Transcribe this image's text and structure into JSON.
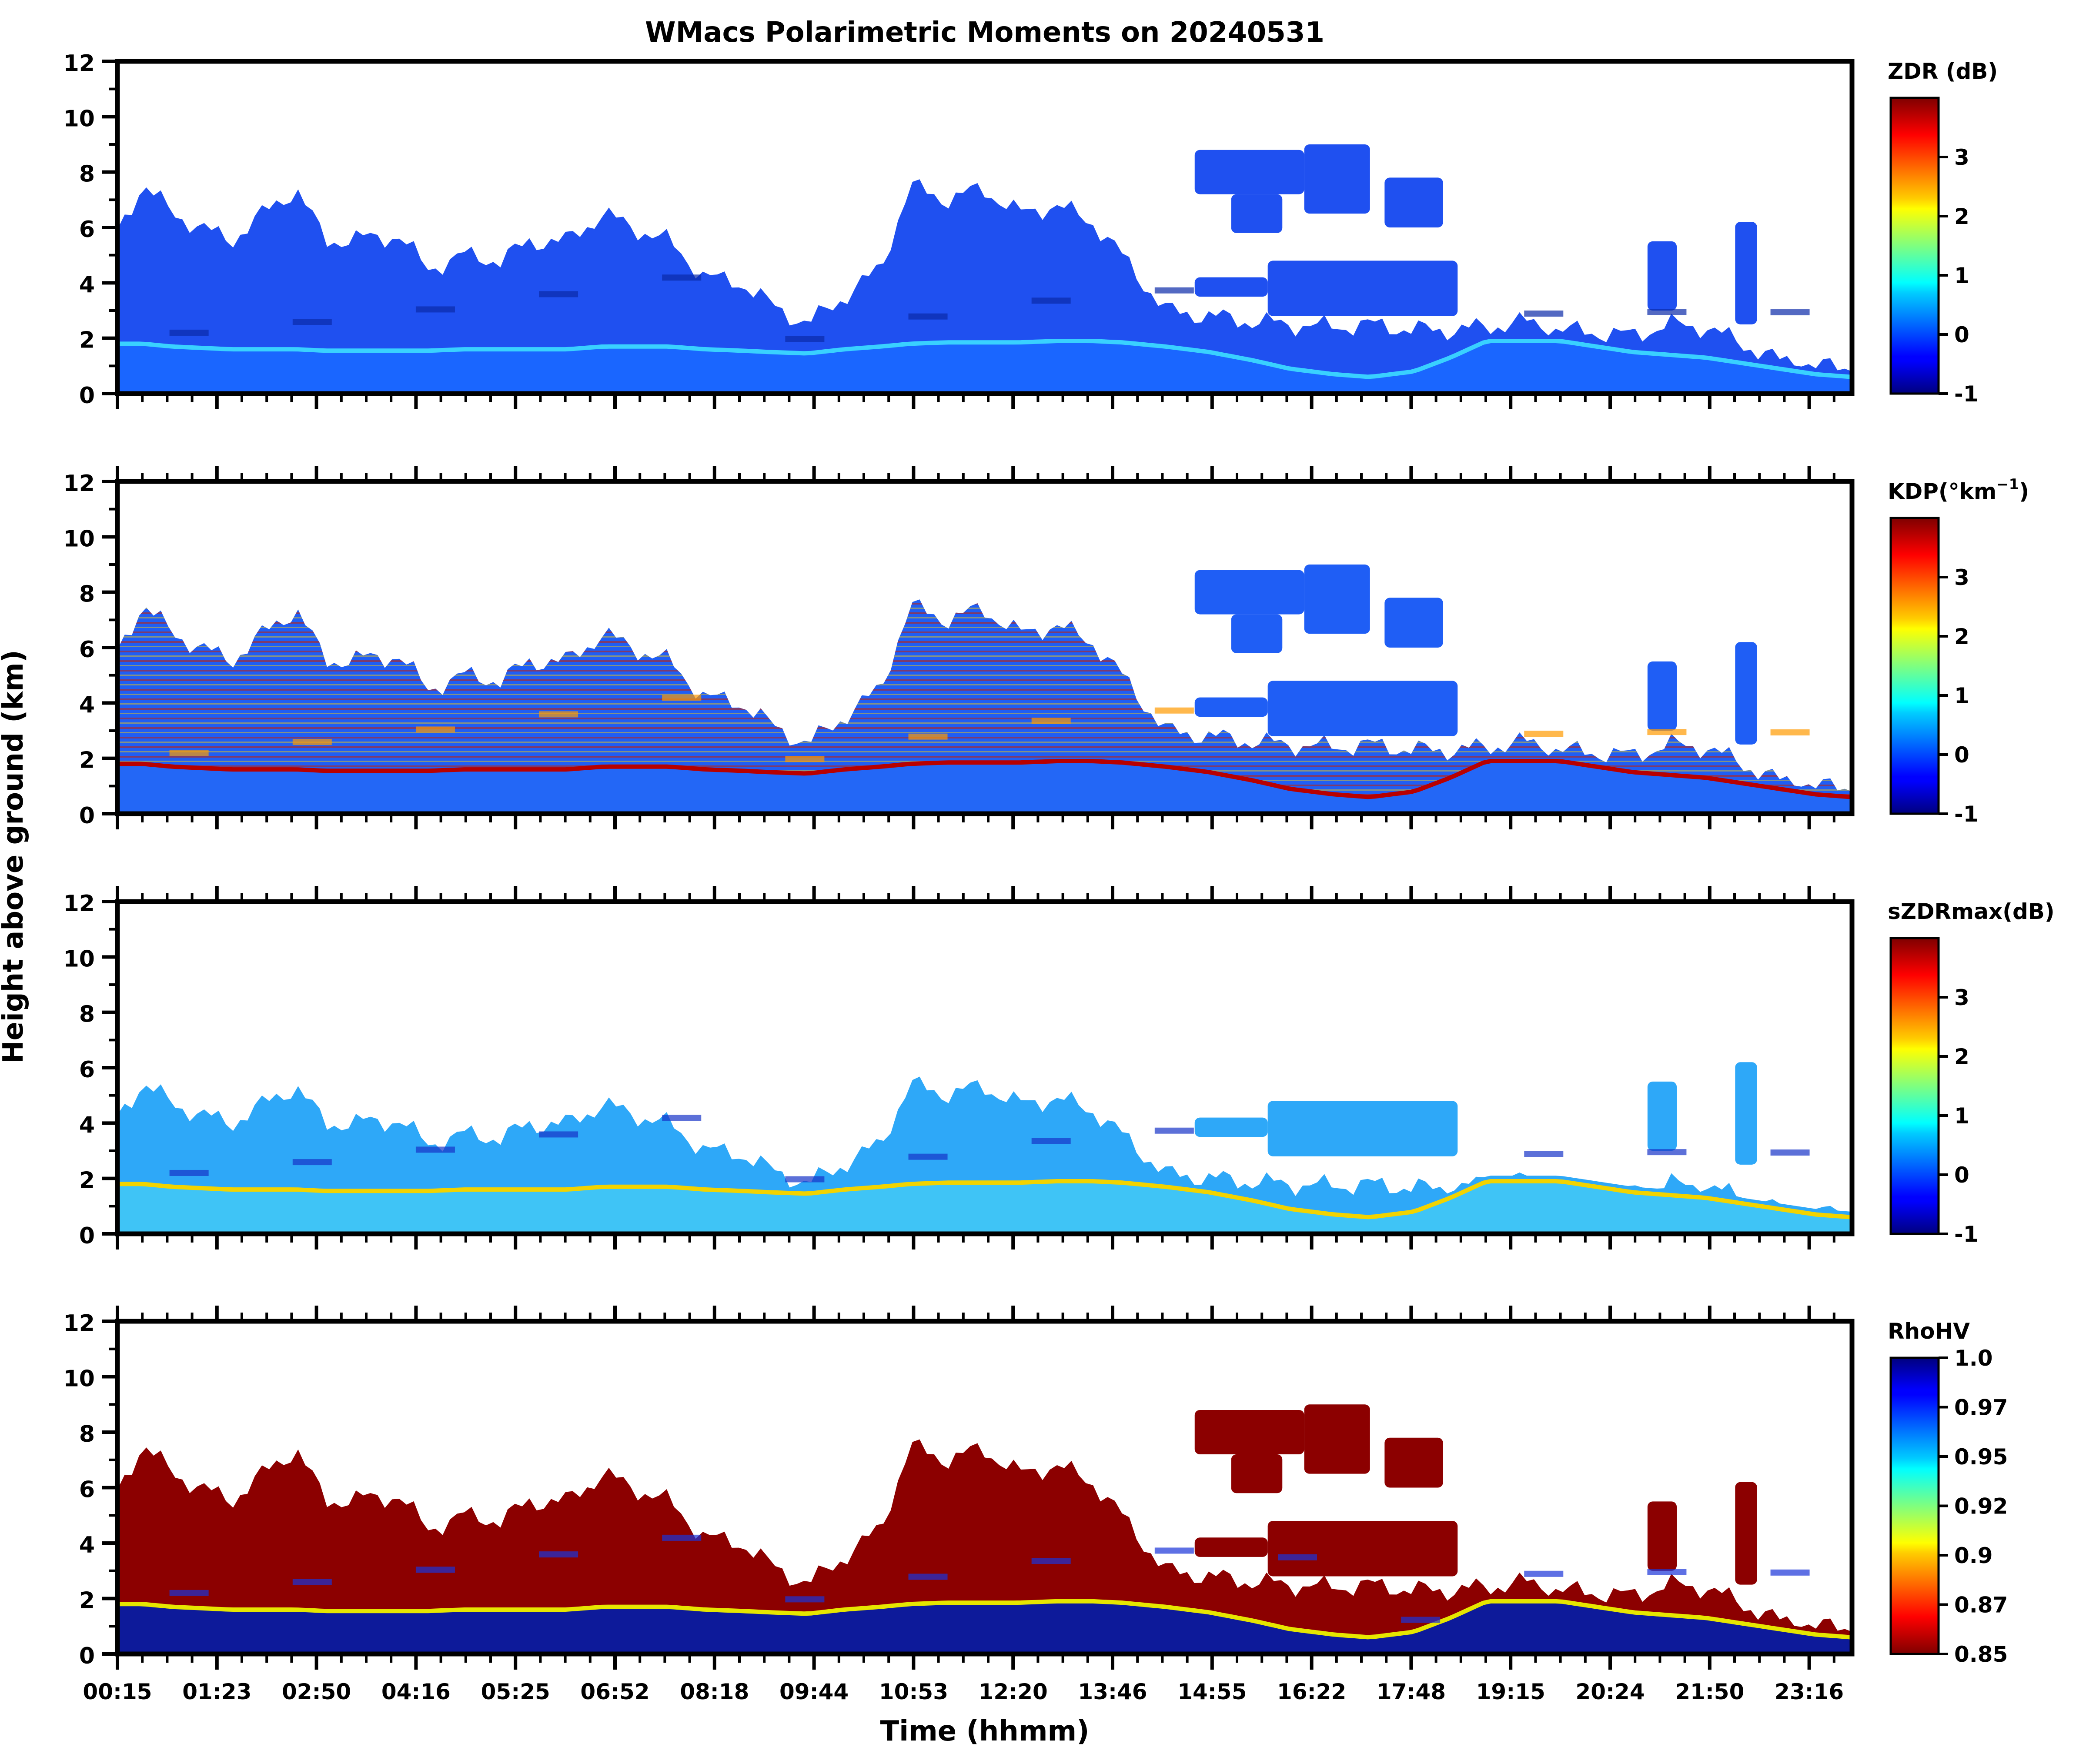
{
  "figure": {
    "title": "WMacs Polarimetric Moments on 20240531",
    "ylabel": "Height above ground (km)",
    "xlabel": "Time (hhmm)"
  },
  "chart_data": [
    {
      "type": "heatmap",
      "variable": "ZDR",
      "colorbar_label": "ZDR (dB)",
      "colorbar_ticks": [
        "3",
        "2",
        "1",
        "0",
        "-1"
      ],
      "colorbar_tick_values": [
        3,
        2,
        1,
        0,
        -1
      ],
      "clim": [
        -1,
        4
      ],
      "colormap": "jet",
      "ylim": [
        0,
        12
      ],
      "yticks": [
        "0",
        "2",
        "4",
        "6",
        "8",
        "10",
        "12"
      ],
      "xlim_hours": [
        0.25,
        24.0
      ],
      "xticks_shown": false
    },
    {
      "type": "heatmap",
      "variable": "KDP",
      "colorbar_label_main": "KDP(°km",
      "colorbar_label_sup": "−1",
      "colorbar_label_end": ")",
      "colorbar_ticks": [
        "3",
        "2",
        "1",
        "0",
        "-1"
      ],
      "colorbar_tick_values": [
        3,
        2,
        1,
        0,
        -1
      ],
      "clim": [
        -1,
        4
      ],
      "colormap": "jet",
      "ylim": [
        0,
        12
      ],
      "yticks": [
        "0",
        "2",
        "4",
        "6",
        "8",
        "10",
        "12"
      ],
      "xlim_hours": [
        0.25,
        24.0
      ],
      "xticks_shown": false
    },
    {
      "type": "heatmap",
      "variable": "sZDRmax",
      "colorbar_label": "sZDRmax(dB)",
      "colorbar_ticks": [
        "3",
        "2",
        "1",
        "0",
        "-1"
      ],
      "colorbar_tick_values": [
        3,
        2,
        1,
        0,
        -1
      ],
      "clim": [
        -1,
        4
      ],
      "colormap": "jet",
      "ylim": [
        0,
        12
      ],
      "yticks": [
        "0",
        "2",
        "4",
        "6",
        "8",
        "10",
        "12"
      ],
      "xlim_hours": [
        0.25,
        24.0
      ],
      "xticks_shown": false
    },
    {
      "type": "heatmap",
      "variable": "RhoHV",
      "colorbar_label": "RhoHV",
      "colorbar_ticks": [
        "1.0",
        "0.97",
        "0.95",
        "0.92",
        "0.9",
        "0.87",
        "0.85"
      ],
      "colorbar_tick_values": [
        1.0,
        0.975,
        0.95,
        0.925,
        0.9,
        0.875,
        0.85
      ],
      "clim": [
        0.85,
        1.0
      ],
      "colormap": "jet_r",
      "ylim": [
        0,
        12
      ],
      "yticks": [
        "0",
        "2",
        "4",
        "6",
        "8",
        "10",
        "12"
      ],
      "xlim_hours": [
        0.25,
        24.0
      ],
      "xticks_shown": true,
      "xtick_labels": [
        "00:15",
        "01:23",
        "02:50",
        "04:16",
        "05:25",
        "06:52",
        "08:18",
        "09:44",
        "10:53",
        "12:20",
        "13:46",
        "14:55",
        "16:22",
        "17:48",
        "19:15",
        "20:24",
        "21:50",
        "23:16"
      ]
    }
  ],
  "echo_profile_km": {
    "times_hours": [
      0.25,
      0.6,
      1.0,
      1.4,
      1.8,
      2.2,
      2.7,
      3.1,
      3.6,
      4.1,
      4.5,
      5.0,
      5.5,
      5.9,
      6.4,
      6.9,
      7.3,
      7.8,
      8.3,
      8.8,
      9.2,
      9.7,
      10.2,
      10.7,
      11.1,
      11.6,
      12.1,
      12.6,
      13.1,
      13.6,
      14.0,
      14.6,
      15.2,
      15.8,
      16.3,
      16.9,
      17.4,
      18.0,
      18.5,
      19.0,
      19.5,
      20.0,
      20.5,
      21.0,
      21.5,
      22.0,
      22.5,
      23.0,
      23.5,
      24.0
    ],
    "top_km": [
      5.8,
      7.6,
      6.5,
      6.0,
      5.5,
      6.4,
      7.4,
      5.5,
      5.6,
      5.7,
      4.5,
      5.0,
      4.8,
      5.5,
      5.5,
      6.5,
      6.0,
      5.5,
      4.2,
      4.0,
      3.2,
      2.5,
      3.5,
      4.5,
      7.5,
      7.0,
      7.4,
      6.5,
      6.8,
      6.2,
      5.0,
      3.0,
      2.8,
      2.6,
      2.5,
      2.4,
      2.5,
      2.3,
      2.3,
      2.4,
      2.6,
      2.3,
      2.2,
      2.1,
      2.5,
      2.4,
      1.8,
      1.2,
      1.0,
      0.9
    ],
    "melting_layer_km": [
      1.8,
      1.8,
      1.7,
      1.65,
      1.6,
      1.6,
      1.6,
      1.55,
      1.55,
      1.55,
      1.55,
      1.6,
      1.6,
      1.6,
      1.6,
      1.7,
      1.7,
      1.7,
      1.6,
      1.55,
      1.5,
      1.45,
      1.6,
      1.7,
      1.8,
      1.85,
      1.85,
      1.85,
      1.9,
      1.9,
      1.85,
      1.7,
      1.5,
      1.2,
      0.9,
      0.7,
      0.6,
      0.8,
      1.3,
      1.9,
      1.9,
      1.9,
      1.7,
      1.5,
      1.4,
      1.3,
      1.1,
      0.9,
      0.7,
      0.6
    ],
    "high_cloud_patches": [
      {
        "t0": 15.0,
        "t1": 16.5,
        "b": 7.2,
        "h": 8.8
      },
      {
        "t0": 16.5,
        "t1": 17.4,
        "b": 6.5,
        "h": 9.0
      },
      {
        "t0": 17.6,
        "t1": 18.4,
        "b": 6.0,
        "h": 7.8
      },
      {
        "t0": 15.5,
        "t1": 16.2,
        "b": 5.8,
        "h": 7.2
      },
      {
        "t0": 16.0,
        "t1": 18.6,
        "b": 2.8,
        "h": 4.8
      },
      {
        "t0": 15.0,
        "t1": 16.0,
        "b": 3.5,
        "h": 4.2
      },
      {
        "t0": 21.2,
        "t1": 21.6,
        "b": 3.0,
        "h": 5.5
      },
      {
        "t0": 22.4,
        "t1": 22.7,
        "b": 2.5,
        "h": 6.2
      }
    ]
  }
}
